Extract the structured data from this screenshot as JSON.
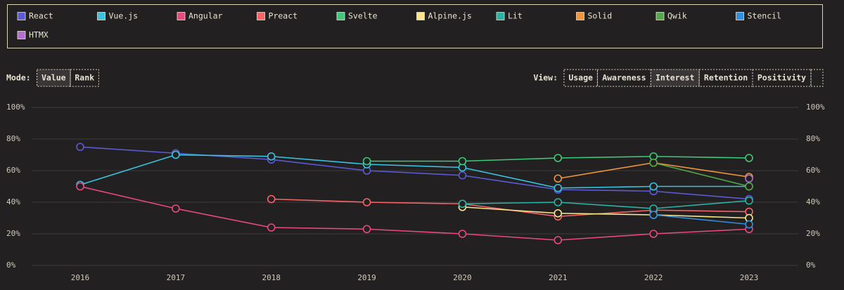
{
  "controls": {
    "mode": {
      "label": "Mode:",
      "options": [
        "Value",
        "Rank"
      ],
      "selected": 0
    },
    "view": {
      "label": "View:",
      "options": [
        "Usage",
        "Awareness",
        "Interest",
        "Retention",
        "Positivity"
      ],
      "selected": 2
    }
  },
  "chart_data": {
    "type": "line",
    "x": [
      "2016",
      "2017",
      "2018",
      "2019",
      "2020",
      "2021",
      "2022",
      "2023"
    ],
    "ylim": [
      0,
      100
    ],
    "yticks": [
      {
        "value": 0,
        "label": "0%"
      },
      {
        "value": 20,
        "label": "20%"
      },
      {
        "value": 40,
        "label": "40%"
      },
      {
        "value": 60,
        "label": "60%"
      },
      {
        "value": 80,
        "label": "80%"
      },
      {
        "value": 100,
        "label": "100%"
      }
    ],
    "grid": true,
    "legend": "top",
    "series": [
      {
        "name": "React",
        "color": "#5b5bd6",
        "values": [
          75,
          71,
          67,
          60,
          57,
          48,
          47,
          42
        ]
      },
      {
        "name": "Vue.js",
        "color": "#38c4e0",
        "values": [
          51,
          70,
          69,
          64,
          62,
          49,
          50,
          50
        ]
      },
      {
        "name": "Angular",
        "color": "#e8497e",
        "values": [
          50,
          36,
          24,
          23,
          20,
          16,
          20,
          23
        ]
      },
      {
        "name": "Preact",
        "color": "#f5656a",
        "values": [
          null,
          null,
          42,
          40,
          39,
          31,
          35,
          34
        ]
      },
      {
        "name": "Svelte",
        "color": "#3ec97a",
        "values": [
          null,
          null,
          null,
          66,
          66,
          68,
          69,
          68
        ]
      },
      {
        "name": "Alpine.js",
        "color": "#fde68a",
        "values": [
          null,
          null,
          null,
          null,
          37,
          33,
          32,
          30
        ]
      },
      {
        "name": "Lit",
        "color": "#2ab3a4",
        "values": [
          null,
          null,
          null,
          null,
          39,
          40,
          36,
          41
        ]
      },
      {
        "name": "Solid",
        "color": "#f0953a",
        "values": [
          null,
          null,
          null,
          null,
          null,
          55,
          65,
          56
        ]
      },
      {
        "name": "Qwik",
        "color": "#52a84a",
        "values": [
          null,
          null,
          null,
          null,
          null,
          null,
          65,
          50
        ]
      },
      {
        "name": "Stencil",
        "color": "#2f8fe0",
        "values": [
          null,
          null,
          null,
          null,
          null,
          null,
          32,
          26
        ]
      },
      {
        "name": "HTMX",
        "color": "#b56fd0",
        "values": [
          null,
          null,
          null,
          null,
          null,
          null,
          null,
          55
        ]
      }
    ]
  }
}
